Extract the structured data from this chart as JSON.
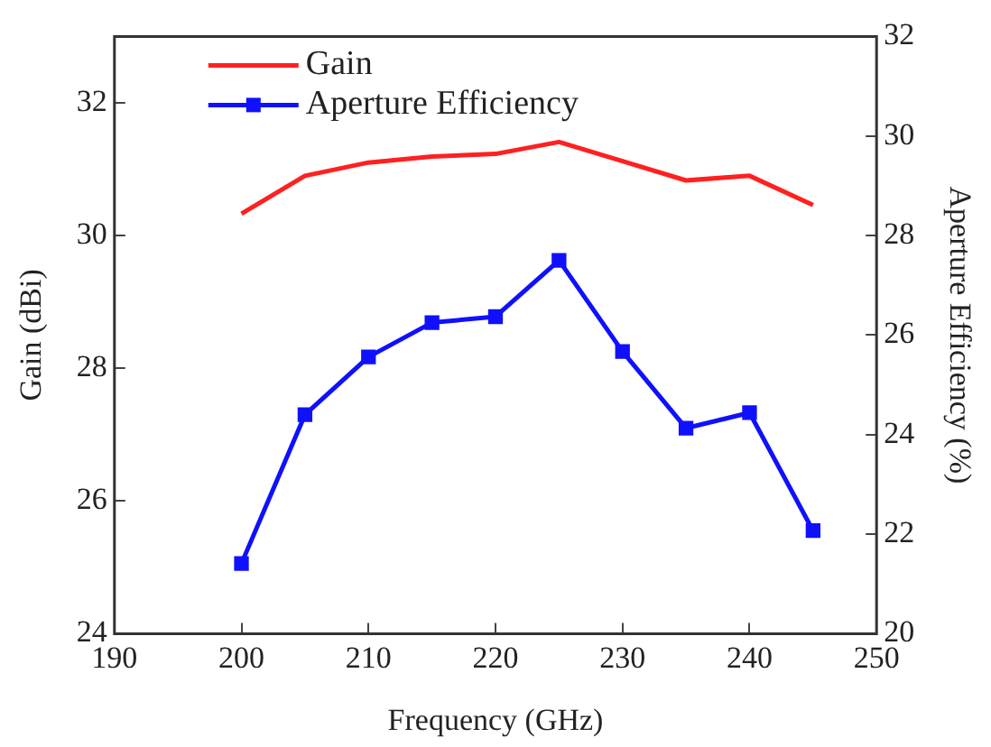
{
  "chart_data": {
    "type": "line",
    "xlabel": "Frequency (GHz)",
    "ylabel": "Gain (dBi)",
    "y2label": "Aperture Efficiency (%)",
    "x": [
      200,
      205,
      210,
      215,
      220,
      225,
      230,
      235,
      240,
      245
    ],
    "xlim": [
      190,
      250
    ],
    "xticks": [
      190,
      200,
      210,
      220,
      230,
      240,
      250
    ],
    "ylim": [
      24,
      33
    ],
    "yticks": [
      24,
      26,
      28,
      30,
      32
    ],
    "y2lim": [
      20,
      32
    ],
    "y2ticks": [
      20,
      22,
      24,
      26,
      28,
      30,
      32
    ],
    "grid": false,
    "legend": "top left",
    "series": [
      {
        "name": "Gain",
        "color": "#ff2020",
        "marker": "none",
        "values": [
          30.33,
          30.9,
          31.1,
          31.19,
          31.23,
          31.41,
          31.12,
          30.83,
          30.9,
          30.46
        ]
      },
      {
        "name": "Aperture Efficiency",
        "color": "#1010ff",
        "marker": "square",
        "axis": "y2",
        "values": [
          21.41,
          24.4,
          25.56,
          26.25,
          26.37,
          27.5,
          25.67,
          24.13,
          24.44,
          22.07
        ]
      }
    ]
  }
}
